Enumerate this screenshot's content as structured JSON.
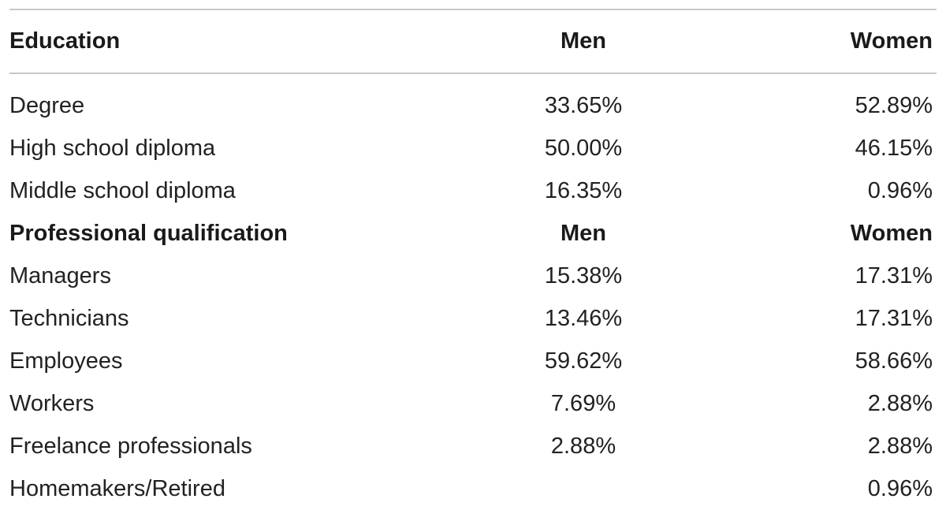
{
  "header": {
    "label": "Education",
    "men": "Men",
    "women": "Women"
  },
  "education_rows": [
    {
      "label": "Degree",
      "men": "33.65%",
      "women": "52.89%"
    },
    {
      "label": "High school diploma",
      "men": "50.00%",
      "women": "46.15%"
    },
    {
      "label": "Middle school diploma",
      "men": "16.35%",
      "women": "0.96%"
    }
  ],
  "subheader": {
    "label": "Professional qualification",
    "men": "Men",
    "women": "Women"
  },
  "qualification_rows": [
    {
      "label": "Managers",
      "men": "15.38%",
      "women": "17.31%"
    },
    {
      "label": "Technicians",
      "men": "13.46%",
      "women": "17.31%"
    },
    {
      "label": "Employees",
      "men": "59.62%",
      "women": "58.66%"
    },
    {
      "label": "Workers",
      "men": "7.69%",
      "women": "2.88%"
    },
    {
      "label": "Freelance professionals",
      "men": "2.88%",
      "women": "2.88%"
    },
    {
      "label": "Homemakers/Retired",
      "men": "",
      "women": "0.96%"
    }
  ]
}
